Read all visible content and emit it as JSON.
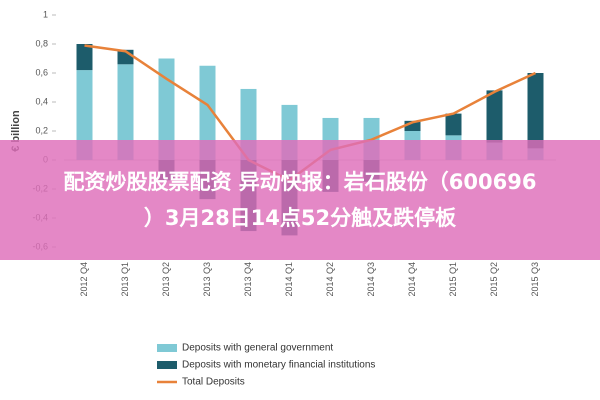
{
  "chart_data": {
    "type": "bar",
    "y_label": "€ billion",
    "categories": [
      "2012 Q4",
      "2013 Q1",
      "2013 Q2",
      "2013 Q3",
      "2013 Q4",
      "2014 Q1",
      "2014 Q2",
      "2014 Q3",
      "2014 Q4",
      "2015 Q1",
      "2015 Q2",
      "2015 Q3"
    ],
    "series": [
      {
        "name": "Deposits with general government",
        "color": "#7fc9d5",
        "values": [
          0.62,
          0.66,
          0.7,
          0.65,
          0.49,
          0.38,
          0.29,
          0.29,
          0.2,
          0.17,
          0.12,
          0.08
        ]
      },
      {
        "name": "Deposits with monetary financial institutions",
        "color": "#1d5c6b",
        "values": [
          0.18,
          0.1,
          -0.14,
          -0.27,
          -0.49,
          -0.52,
          -0.22,
          -0.15,
          0.07,
          0.15,
          0.36,
          0.52
        ]
      },
      {
        "name": "Total Deposits",
        "color": "#e8823a",
        "type": "line",
        "values": [
          0.79,
          0.75,
          0.56,
          0.38,
          0.0,
          -0.14,
          0.07,
          0.14,
          0.26,
          0.32,
          0.47,
          0.6
        ]
      }
    ],
    "ylim": [
      -0.6,
      1
    ],
    "yticks": [
      {
        "value": -0.6,
        "label": "-0,6"
      },
      {
        "value": -0.4,
        "label": "-0,4"
      },
      {
        "value": -0.2,
        "label": "-0,2"
      },
      0,
      {
        "value": 0.2,
        "label": "0,2"
      },
      {
        "value": 0.4,
        "label": "0,4"
      },
      {
        "value": 0.6,
        "label": "0,6"
      },
      {
        "value": 0.8,
        "label": "0,8"
      },
      1
    ]
  },
  "banner": {
    "lines": [
      "配资炒股股票配资 异动快报：岩石股份（600696",
      "）3月28日14点52分触及跌停板"
    ]
  }
}
